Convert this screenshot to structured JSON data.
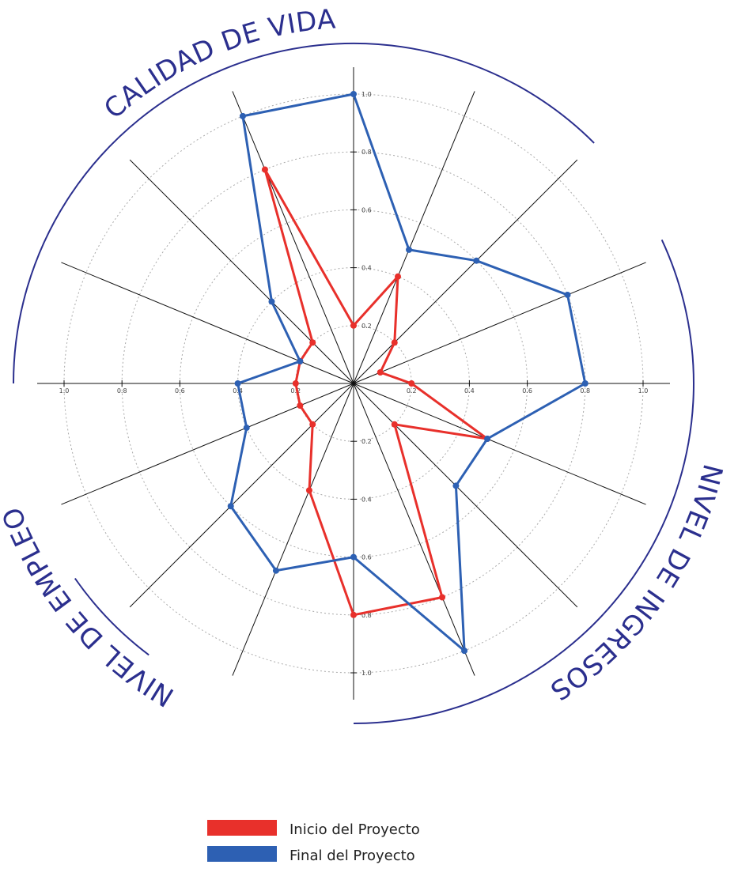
{
  "chart_data": {
    "type": "radar",
    "axis_count": 16,
    "axis_range": [
      0,
      1.0
    ],
    "ticks": [
      0.2,
      0.4,
      0.6,
      0.8,
      1.0
    ],
    "tick_labels": [
      "0.2",
      "0.4",
      "0.6",
      "0.8",
      "1.0"
    ],
    "grid": true,
    "groups": [
      {
        "label": "CALIDAD DE VIDA",
        "color": "#2b2f8e"
      },
      {
        "label": "NIVEL DE INGRESOS",
        "color": "#2b2f8e"
      },
      {
        "label": "NIVEL DE EMPLEO",
        "color": "#2b2f8e"
      }
    ],
    "series": [
      {
        "name": "Inicio del Proyecto",
        "color": "#e8302b",
        "values": [
          0.2,
          0.4,
          0.2,
          0.1,
          0.2,
          0.5,
          0.2,
          0.8,
          0.8,
          0.4,
          0.2,
          0.2,
          0.2,
          0.2,
          0.2,
          0.8
        ]
      },
      {
        "name": "Final del Proyecto",
        "color": "#2d60b3",
        "values": [
          1.0,
          0.5,
          0.6,
          0.8,
          0.8,
          0.5,
          0.5,
          1.0,
          0.6,
          0.7,
          0.6,
          0.4,
          0.4,
          0.2,
          0.4,
          1.0
        ]
      }
    ],
    "legend": {
      "position": "bottom-center"
    }
  }
}
